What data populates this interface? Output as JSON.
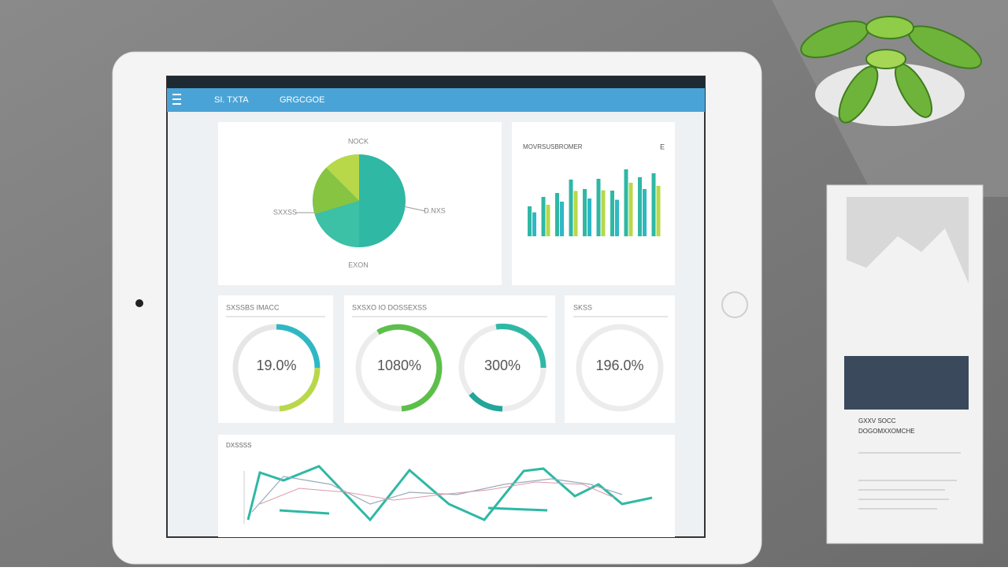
{
  "header": {
    "title": "SI. TXTA",
    "subtitle": "GRGCGOE"
  },
  "pie_card": {
    "title": "NOCK",
    "labels": [
      "SXXSS",
      "D.NXS",
      "EXON"
    ]
  },
  "bar_card": {
    "title": "MOVRSUSBROMER",
    "corner": "E"
  },
  "cards": [
    {
      "title": "SXSSBS IMACC",
      "values": [
        "19.0%"
      ]
    },
    {
      "title": "SXSXO IO DOSSEXSS",
      "values": [
        "1080%",
        "300%"
      ]
    },
    {
      "title": "SKSS",
      "values": [
        "196.0%"
      ]
    }
  ],
  "line_card": {
    "title": "DXSSSS"
  },
  "box": {
    "lines": [
      "GXXV SOCC",
      "DOGOMXXOMCHE"
    ]
  }
}
